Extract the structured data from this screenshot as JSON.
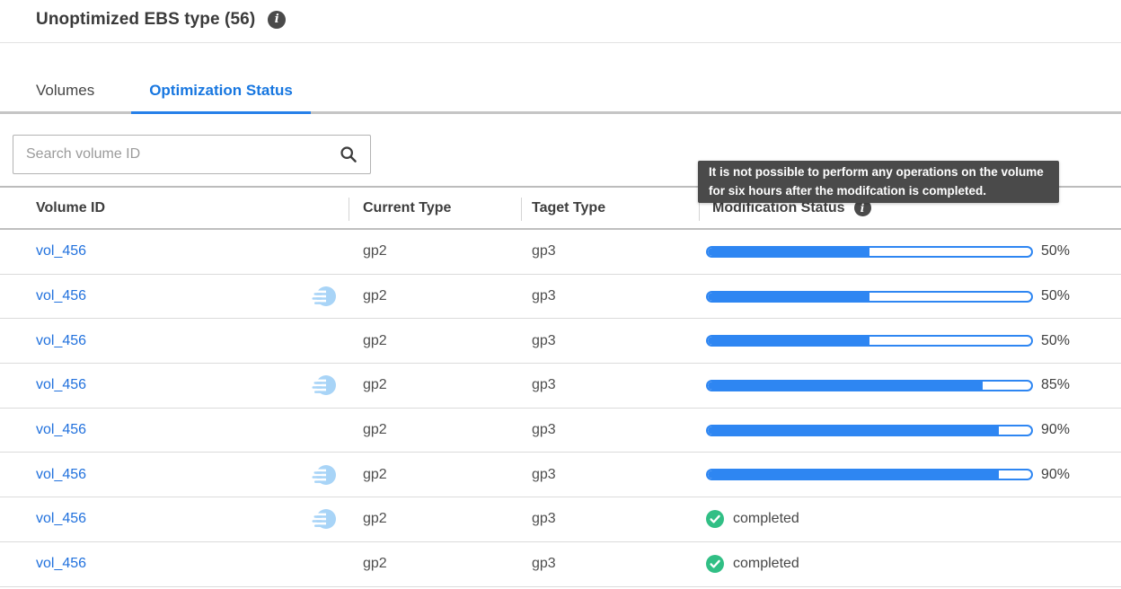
{
  "page": {
    "title": "Unoptimized EBS type (56)"
  },
  "tabs": [
    {
      "label": "Volumes",
      "active": false
    },
    {
      "label": "Optimization Status",
      "active": true
    }
  ],
  "search": {
    "placeholder": "Search volume ID"
  },
  "tooltip": {
    "text": "It is not possible to perform any operations on the volume for six hours after the modifcation is completed."
  },
  "icons": {
    "title_info": "info-icon",
    "header_info": "info-icon",
    "search": "search-icon",
    "row_marker": "fast-restore-icon",
    "completed": "check-circle-icon"
  },
  "colors": {
    "accent_blue": "#2e86f2",
    "link_blue": "#2171dd",
    "active_tab_blue": "#1877e0",
    "success_green": "#31bf85",
    "tooltip_bg": "#4a4a4a",
    "marker_light_blue": "#a8d4f7"
  },
  "table": {
    "columns": [
      "Volume ID",
      "Current Type",
      "Taget Type",
      "Modification Status"
    ],
    "completed_label": "completed",
    "rows": [
      {
        "volume_id": "vol_456",
        "fast_icon": false,
        "current_type": "gp2",
        "target_type": "gp3",
        "status": "in_progress",
        "percent": 50
      },
      {
        "volume_id": "vol_456",
        "fast_icon": true,
        "current_type": "gp2",
        "target_type": "gp3",
        "status": "in_progress",
        "percent": 50
      },
      {
        "volume_id": "vol_456",
        "fast_icon": false,
        "current_type": "gp2",
        "target_type": "gp3",
        "status": "in_progress",
        "percent": 50
      },
      {
        "volume_id": "vol_456",
        "fast_icon": true,
        "current_type": "gp2",
        "target_type": "gp3",
        "status": "in_progress",
        "percent": 85
      },
      {
        "volume_id": "vol_456",
        "fast_icon": false,
        "current_type": "gp2",
        "target_type": "gp3",
        "status": "in_progress",
        "percent": 90
      },
      {
        "volume_id": "vol_456",
        "fast_icon": true,
        "current_type": "gp2",
        "target_type": "gp3",
        "status": "in_progress",
        "percent": 90
      },
      {
        "volume_id": "vol_456",
        "fast_icon": true,
        "current_type": "gp2",
        "target_type": "gp3",
        "status": "completed"
      },
      {
        "volume_id": "vol_456",
        "fast_icon": false,
        "current_type": "gp2",
        "target_type": "gp3",
        "status": "completed"
      }
    ]
  }
}
